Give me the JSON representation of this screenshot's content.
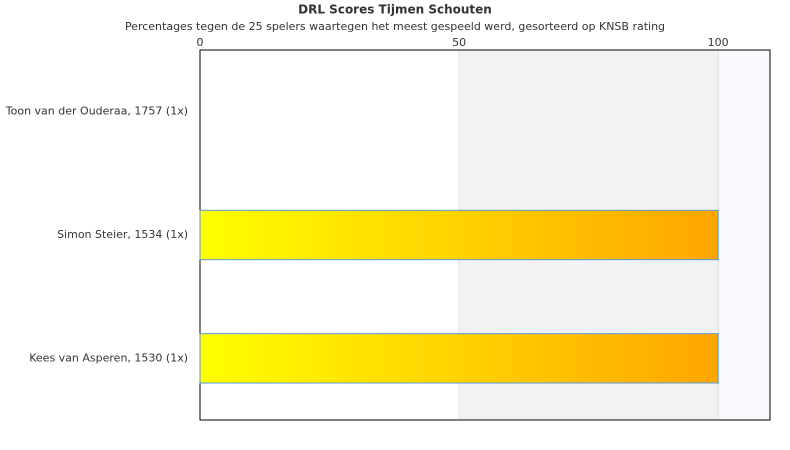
{
  "chart_data": {
    "type": "bar",
    "orientation": "horizontal",
    "title": "DRL Scores Tijmen Schouten",
    "subtitle": "Percentages tegen de 25 spelers waartegen het meest gespeeld werd, gesorteerd op KNSB rating",
    "categories": [
      "Toon van der Ouderaa, 1757 (1x)",
      "Simon Steier, 1534 (1x)",
      "Kees van Asperen, 1530 (1x)"
    ],
    "values": [
      0,
      100,
      100
    ],
    "gradient": [
      "#ffff00",
      "#ffa500"
    ],
    "border_color": "#5b9bd5",
    "band_colors": [
      "#ffffff",
      "#f2f2f2",
      "#f8f9fc"
    ],
    "xlim": [
      0,
      110
    ],
    "xticks": [
      0,
      50,
      100
    ],
    "grid": true
  }
}
